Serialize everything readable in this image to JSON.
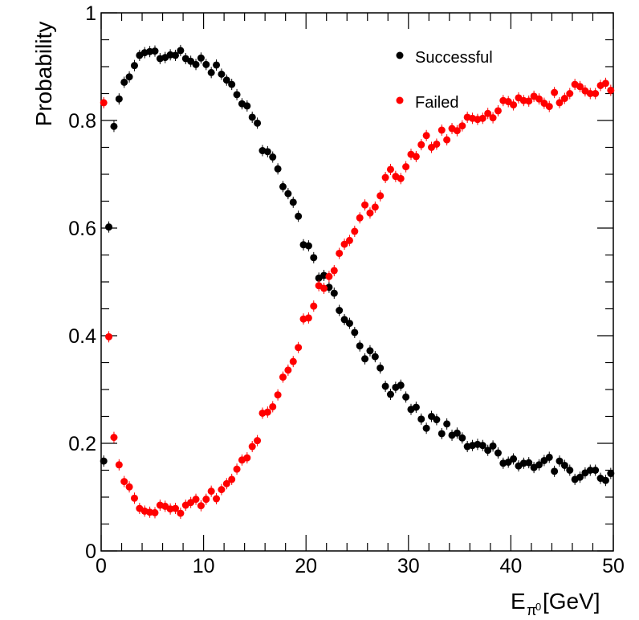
{
  "chart_data": {
    "type": "scatter",
    "title": "",
    "xlabel": {
      "main": "E",
      "sub": "π",
      "sup": "0",
      "unit": "[GeV]"
    },
    "ylabel": "Probability",
    "xlim": [
      0,
      50
    ],
    "ylim": [
      0,
      1
    ],
    "xticks": [
      0,
      10,
      20,
      30,
      40,
      50
    ],
    "xtick_labels": [
      "0",
      "10",
      "20",
      "30",
      "40",
      "50"
    ],
    "yticks": [
      0,
      0.2,
      0.4,
      0.6,
      0.8,
      1
    ],
    "ytick_labels": [
      "0",
      "0.2",
      "0.4",
      "0.6",
      "0.8",
      "1"
    ],
    "grid": false,
    "legend_position": "top-right",
    "x": [
      0.25,
      0.75,
      1.25,
      1.75,
      2.25,
      2.75,
      3.25,
      3.75,
      4.25,
      4.75,
      5.25,
      5.75,
      6.25,
      6.75,
      7.25,
      7.75,
      8.25,
      8.75,
      9.25,
      9.75,
      10.25,
      10.75,
      11.25,
      11.75,
      12.25,
      12.75,
      13.25,
      13.75,
      14.25,
      14.75,
      15.25,
      15.75,
      16.25,
      16.75,
      17.25,
      17.75,
      18.25,
      18.75,
      19.25,
      19.75,
      20.25,
      20.75,
      21.25,
      21.75,
      22.25,
      22.75,
      23.25,
      23.75,
      24.25,
      24.75,
      25.25,
      25.75,
      26.25,
      26.75,
      27.25,
      27.75,
      28.25,
      28.75,
      29.25,
      29.75,
      30.25,
      30.75,
      31.25,
      31.75,
      32.25,
      32.75,
      33.25,
      33.75,
      34.25,
      34.75,
      35.25,
      35.75,
      36.25,
      36.75,
      37.25,
      37.75,
      38.25,
      38.75,
      39.25,
      39.75,
      40.25,
      40.75,
      41.25,
      41.75,
      42.25,
      42.75,
      43.25,
      43.75,
      44.25,
      44.75,
      45.25,
      45.75,
      46.25,
      46.75,
      47.25,
      47.75,
      48.25,
      48.75,
      49.25,
      49.75
    ],
    "series": [
      {
        "name": "Successful",
        "color": "#000000",
        "values": [
          0.167,
          0.602,
          0.789,
          0.84,
          0.871,
          0.881,
          0.902,
          0.921,
          0.926,
          0.928,
          0.929,
          0.915,
          0.917,
          0.922,
          0.921,
          0.93,
          0.915,
          0.91,
          0.904,
          0.916,
          0.904,
          0.889,
          0.903,
          0.886,
          0.875,
          0.867,
          0.848,
          0.831,
          0.827,
          0.806,
          0.795,
          0.744,
          0.742,
          0.732,
          0.71,
          0.677,
          0.664,
          0.648,
          0.622,
          0.569,
          0.567,
          0.545,
          0.507,
          0.512,
          0.49,
          0.479,
          0.447,
          0.43,
          0.423,
          0.406,
          0.381,
          0.357,
          0.372,
          0.361,
          0.34,
          0.306,
          0.291,
          0.304,
          0.308,
          0.286,
          0.263,
          0.267,
          0.245,
          0.228,
          0.25,
          0.244,
          0.218,
          0.236,
          0.215,
          0.219,
          0.21,
          0.194,
          0.196,
          0.198,
          0.196,
          0.187,
          0.195,
          0.182,
          0.163,
          0.165,
          0.171,
          0.158,
          0.163,
          0.164,
          0.155,
          0.16,
          0.168,
          0.174,
          0.148,
          0.167,
          0.159,
          0.15,
          0.133,
          0.137,
          0.145,
          0.15,
          0.15,
          0.135,
          0.131,
          0.144
        ]
      },
      {
        "name": "Failed",
        "color": "#ff0000",
        "values": [
          0.833,
          0.398,
          0.211,
          0.16,
          0.129,
          0.119,
          0.098,
          0.079,
          0.074,
          0.072,
          0.071,
          0.085,
          0.083,
          0.078,
          0.079,
          0.07,
          0.085,
          0.09,
          0.096,
          0.084,
          0.096,
          0.111,
          0.097,
          0.114,
          0.125,
          0.133,
          0.152,
          0.169,
          0.173,
          0.194,
          0.205,
          0.256,
          0.258,
          0.268,
          0.29,
          0.323,
          0.336,
          0.352,
          0.378,
          0.431,
          0.433,
          0.455,
          0.493,
          0.488,
          0.51,
          0.521,
          0.553,
          0.57,
          0.577,
          0.594,
          0.619,
          0.643,
          0.628,
          0.639,
          0.66,
          0.694,
          0.709,
          0.696,
          0.692,
          0.714,
          0.737,
          0.733,
          0.755,
          0.772,
          0.75,
          0.756,
          0.782,
          0.764,
          0.785,
          0.781,
          0.79,
          0.806,
          0.804,
          0.802,
          0.804,
          0.813,
          0.805,
          0.818,
          0.837,
          0.835,
          0.829,
          0.842,
          0.837,
          0.836,
          0.845,
          0.84,
          0.832,
          0.826,
          0.852,
          0.833,
          0.841,
          0.85,
          0.867,
          0.863,
          0.855,
          0.85,
          0.85,
          0.865,
          0.869,
          0.856
        ]
      }
    ]
  }
}
